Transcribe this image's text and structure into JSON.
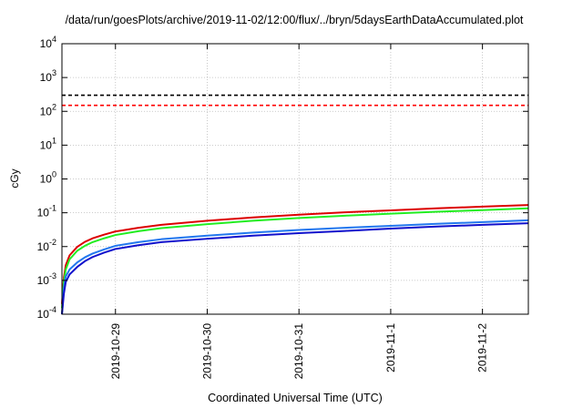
{
  "chart_data": {
    "type": "line",
    "title": "/data/run/goesPlots/archive/2019-11-02/12:00/flux/../bryn/5daysEarthDataAccumulated.plot",
    "xlabel": "Coordinated Universal Time (UTC)",
    "ylabel": "cGy",
    "y_scale": "log",
    "ylim": [
      0.0001,
      10000
    ],
    "y_ticks": [
      {
        "value": 0.0001,
        "base": "10",
        "exp": "-4"
      },
      {
        "value": 0.001,
        "base": "10",
        "exp": "-3"
      },
      {
        "value": 0.01,
        "base": "10",
        "exp": "-2"
      },
      {
        "value": 0.1,
        "base": "10",
        "exp": "-1"
      },
      {
        "value": 1,
        "base": "10",
        "exp": "0"
      },
      {
        "value": 10,
        "base": "10",
        "exp": "1"
      },
      {
        "value": 100,
        "base": "10",
        "exp": "2"
      },
      {
        "value": 1000,
        "base": "10",
        "exp": "3"
      },
      {
        "value": 10000,
        "base": "10",
        "exp": "4"
      }
    ],
    "xlim": [
      "2019-10-28T10:00",
      "2019-11-02T12:00"
    ],
    "x_ticks": [
      "2019-10-29",
      "2019-10-30",
      "2019-10-31",
      "2019-11-1",
      "2019-11-2"
    ],
    "x_tick_dates": [
      "2019-10-29T00:00",
      "2019-10-30T00:00",
      "2019-10-31T00:00",
      "2019-11-01T00:00",
      "2019-11-02T00:00"
    ],
    "grid": true,
    "thresholds": [
      {
        "value": 300,
        "color": "#000000",
        "style": "dashed"
      },
      {
        "value": 150,
        "color": "#ff0000",
        "style": "dashed"
      }
    ],
    "series": [
      {
        "color": "#dd0000",
        "x": [
          "2019-10-28T10:00",
          "2019-10-28T10:30",
          "2019-10-28T11:00",
          "2019-10-28T12:00",
          "2019-10-28T14:00",
          "2019-10-28T16:00",
          "2019-10-28T18:00",
          "2019-10-28T21:00",
          "2019-10-29T00:00",
          "2019-10-29T06:00",
          "2019-10-29T12:00",
          "2019-10-30T00:00",
          "2019-10-30T12:00",
          "2019-10-31T00:00",
          "2019-10-31T12:00",
          "2019-11-01T00:00",
          "2019-11-01T12:00",
          "2019-11-02T00:00",
          "2019-11-02T12:00"
        ],
        "y": [
          0.0002,
          0.0012,
          0.0028,
          0.0055,
          0.0098,
          0.0138,
          0.0175,
          0.0225,
          0.028,
          0.036,
          0.044,
          0.058,
          0.073,
          0.088,
          0.103,
          0.118,
          0.135,
          0.152,
          0.17
        ]
      },
      {
        "color": "#22ee22",
        "x": [
          "2019-10-28T10:00",
          "2019-10-28T10:30",
          "2019-10-28T11:00",
          "2019-10-28T12:00",
          "2019-10-28T14:00",
          "2019-10-28T16:00",
          "2019-10-28T18:00",
          "2019-10-28T21:00",
          "2019-10-29T00:00",
          "2019-10-29T06:00",
          "2019-10-29T12:00",
          "2019-10-30T00:00",
          "2019-10-30T12:00",
          "2019-10-31T00:00",
          "2019-10-31T12:00",
          "2019-11-01T00:00",
          "2019-11-01T12:00",
          "2019-11-02T00:00",
          "2019-11-02T12:00"
        ],
        "y": [
          0.00015,
          0.0009,
          0.0021,
          0.0042,
          0.0075,
          0.0105,
          0.0135,
          0.0175,
          0.022,
          0.0285,
          0.035,
          0.046,
          0.058,
          0.07,
          0.082,
          0.094,
          0.107,
          0.12,
          0.135
        ]
      },
      {
        "color": "#2277ee",
        "x": [
          "2019-10-28T10:00",
          "2019-10-28T10:30",
          "2019-10-28T11:00",
          "2019-10-28T12:00",
          "2019-10-28T14:00",
          "2019-10-28T16:00",
          "2019-10-28T18:00",
          "2019-10-28T21:00",
          "2019-10-29T00:00",
          "2019-10-29T06:00",
          "2019-10-29T12:00",
          "2019-10-30T00:00",
          "2019-10-30T12:00",
          "2019-10-31T00:00",
          "2019-10-31T12:00",
          "2019-11-01T00:00",
          "2019-11-01T12:00",
          "2019-11-02T00:00",
          "2019-11-02T12:00"
        ],
        "y": [
          0.0001,
          0.0006,
          0.0013,
          0.0021,
          0.0034,
          0.0048,
          0.0062,
          0.0082,
          0.0105,
          0.0135,
          0.0165,
          0.021,
          0.026,
          0.031,
          0.036,
          0.041,
          0.047,
          0.053,
          0.06
        ]
      },
      {
        "color": "#1111cc",
        "x": [
          "2019-10-28T10:00",
          "2019-10-28T10:30",
          "2019-10-28T11:00",
          "2019-10-28T12:00",
          "2019-10-28T14:00",
          "2019-10-28T16:00",
          "2019-10-28T18:00",
          "2019-10-28T21:00",
          "2019-10-29T00:00",
          "2019-10-29T06:00",
          "2019-10-29T12:00",
          "2019-10-30T00:00",
          "2019-10-30T12:00",
          "2019-10-31T00:00",
          "2019-10-31T12:00",
          "2019-11-01T00:00",
          "2019-11-01T12:00",
          "2019-11-02T00:00",
          "2019-11-02T12:00"
        ],
        "y": [
          0.0001,
          0.0004,
          0.0009,
          0.0015,
          0.0025,
          0.0037,
          0.0049,
          0.0066,
          0.0085,
          0.011,
          0.0135,
          0.017,
          0.021,
          0.025,
          0.029,
          0.034,
          0.039,
          0.044,
          0.049
        ]
      }
    ]
  }
}
